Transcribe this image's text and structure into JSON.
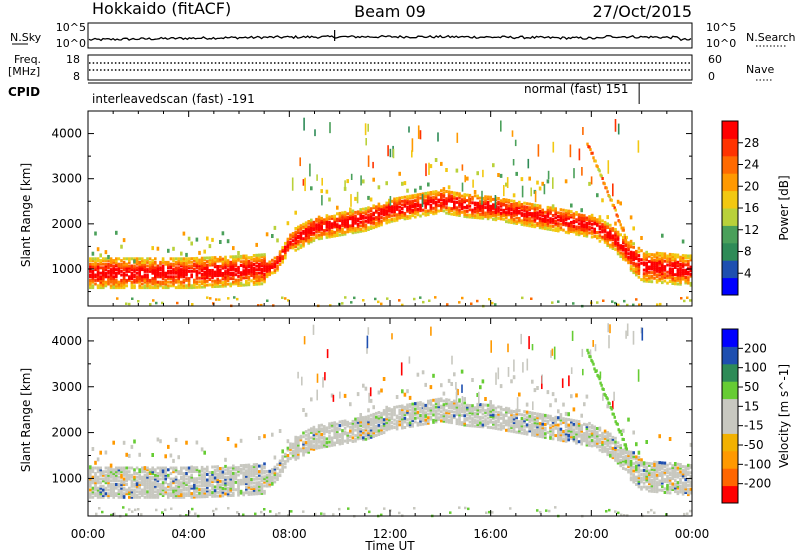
{
  "header": {
    "station": "Hokkaido (fitACF)",
    "beam": "Beam 09",
    "date": "27/Oct/2015"
  },
  "noise_panel": {
    "left_label": "N.Sky",
    "right_label": "N.Search",
    "left_ticks": [
      "10^5",
      "10^0"
    ],
    "right_ticks": [
      "10^5",
      "10^0"
    ]
  },
  "freq_panel": {
    "left_label_1": "Freq.",
    "left_label_2": "[MHz]",
    "left_ticks": [
      "18",
      "8"
    ],
    "right_label": "Nave",
    "right_ticks": [
      "60",
      "0"
    ]
  },
  "cpid": {
    "label": "CPID",
    "entries": [
      {
        "name": "interleavedscan (fast) -191",
        "start_hour": 0,
        "end_hour": 21.9
      },
      {
        "name": "normal (fast) 151",
        "start_hour": 21.9,
        "end_hour": 24
      }
    ]
  },
  "colors": {
    "power": [
      "#0000ff",
      "#1e4fb0",
      "#2e8b57",
      "#4aa05a",
      "#b9d13a",
      "#f2c811",
      "#ff9900",
      "#ff6a00",
      "#ff3300",
      "#ff0000"
    ],
    "velocity": [
      "#ff0000",
      "#ff6600",
      "#ff9900",
      "#f2b100",
      "#c8c8c0",
      "#c8c8c0",
      "#66cc33",
      "#2e8b57",
      "#1e4fb0",
      "#0000ff"
    ]
  },
  "chart_data": [
    {
      "type": "heatmap",
      "title": "Power",
      "xlabel": "Time UT",
      "ylabel": "Slant Range [km]",
      "xlim": [
        0,
        24
      ],
      "ylim": [
        180,
        4500
      ],
      "x_ticks": [
        "00:00",
        "04:00",
        "08:00",
        "12:00",
        "16:00",
        "20:00",
        "00:00"
      ],
      "y_ticks": [
        1000,
        2000,
        3000,
        4000
      ],
      "colorbar": {
        "label": "Power [dB]",
        "ticks": [
          4,
          8,
          12,
          16,
          20,
          24,
          28
        ],
        "range": [
          0,
          32
        ]
      },
      "echo_band_center_km": {
        "hours": [
          0,
          2,
          4,
          6,
          7.2,
          7.5,
          8,
          9,
          10,
          11,
          12,
          13,
          14,
          15,
          16,
          17,
          18,
          19,
          20,
          20.8,
          21.5,
          22,
          24
        ],
        "range_km": [
          950,
          950,
          950,
          1000,
          1050,
          1200,
          1650,
          1950,
          2050,
          2150,
          2350,
          2450,
          2550,
          2450,
          2400,
          2300,
          2200,
          2100,
          2000,
          1750,
          1350,
          1100,
          1000
        ]
      }
    },
    {
      "type": "heatmap",
      "title": "Velocity",
      "xlabel": "Time UT",
      "ylabel": "Slant Range [km]",
      "xlim": [
        0,
        24
      ],
      "ylim": [
        180,
        4500
      ],
      "x_ticks": [
        "00:00",
        "04:00",
        "08:00",
        "12:00",
        "16:00",
        "20:00",
        "00:00"
      ],
      "y_ticks": [
        1000,
        2000,
        3000,
        4000
      ],
      "colorbar": {
        "label": "Velocity [m s^-1]",
        "ticks": [
          -200,
          -100,
          -50,
          -15,
          15,
          50,
          100,
          200
        ]
      },
      "echo_band_center_km": {
        "hours": [
          0,
          2,
          4,
          6,
          7.2,
          7.5,
          8,
          9,
          10,
          11,
          12,
          13,
          14,
          15,
          16,
          17,
          18,
          19,
          20,
          20.8,
          21.5,
          22,
          24
        ],
        "range_km": [
          950,
          950,
          950,
          1000,
          1050,
          1200,
          1650,
          1950,
          2050,
          2150,
          2350,
          2450,
          2550,
          2450,
          2400,
          2300,
          2200,
          2100,
          2000,
          1750,
          1350,
          1100,
          1000
        ]
      }
    }
  ]
}
